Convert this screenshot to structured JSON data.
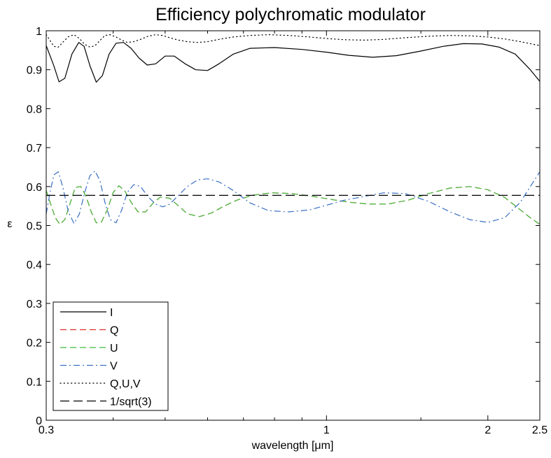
{
  "chart_data": {
    "type": "line",
    "title": "Efficiency polychromatic modulator",
    "xlabel": "wavelength [μm]",
    "ylabel": "ε",
    "xscale": "log",
    "xlim": [
      0.3,
      2.5
    ],
    "ylim": [
      0,
      1
    ],
    "grid": false,
    "legend_position": "bottom-left",
    "x_ticks": [
      {
        "value": 0.3,
        "label": "0.3"
      },
      {
        "value": 1,
        "label": "1"
      },
      {
        "value": 2,
        "label": "2"
      },
      {
        "value": 2.5,
        "label": "2.5"
      }
    ],
    "x_minor_ticks": [
      0.4,
      0.5,
      0.6,
      0.7,
      0.8,
      0.9,
      1.5
    ],
    "y_ticks": [
      {
        "value": 0,
        "label": "0"
      },
      {
        "value": 0.1,
        "label": "0.1"
      },
      {
        "value": 0.2,
        "label": "0.2"
      },
      {
        "value": 0.3,
        "label": "0.3"
      },
      {
        "value": 0.4,
        "label": "0.4"
      },
      {
        "value": 0.5,
        "label": "0.5"
      },
      {
        "value": 0.6,
        "label": "0.6"
      },
      {
        "value": 0.7,
        "label": "0.7"
      },
      {
        "value": 0.8,
        "label": "0.8"
      },
      {
        "value": 0.9,
        "label": "0.9"
      },
      {
        "value": 1,
        "label": "1"
      }
    ],
    "series": [
      {
        "name": "I",
        "color": "#000000",
        "dash": "solid",
        "x": [
          0.3,
          0.31,
          0.317,
          0.325,
          0.335,
          0.345,
          0.353,
          0.362,
          0.372,
          0.382,
          0.393,
          0.405,
          0.418,
          0.432,
          0.447,
          0.463,
          0.48,
          0.5,
          0.52,
          0.545,
          0.57,
          0.6,
          0.63,
          0.67,
          0.72,
          0.8,
          0.9,
          1.0,
          1.1,
          1.22,
          1.35,
          1.5,
          1.65,
          1.8,
          1.95,
          2.1,
          2.25,
          2.4,
          2.5
        ],
        "y": [
          0.962,
          0.91,
          0.869,
          0.878,
          0.94,
          0.97,
          0.96,
          0.91,
          0.868,
          0.885,
          0.94,
          0.968,
          0.97,
          0.955,
          0.93,
          0.912,
          0.915,
          0.935,
          0.935,
          0.915,
          0.9,
          0.898,
          0.915,
          0.94,
          0.955,
          0.957,
          0.952,
          0.945,
          0.937,
          0.932,
          0.936,
          0.948,
          0.96,
          0.967,
          0.966,
          0.958,
          0.94,
          0.9,
          0.87
        ]
      },
      {
        "name": "Q",
        "color": "#e0302a",
        "dash": "dashed",
        "x": [
          0.3,
          0.305,
          0.312,
          0.318,
          0.325,
          0.333,
          0.34,
          0.348,
          0.356,
          0.364,
          0.372,
          0.38,
          0.39,
          0.4,
          0.41,
          0.42,
          0.432,
          0.445,
          0.46,
          0.475,
          0.49,
          0.51,
          0.53,
          0.55,
          0.58,
          0.61,
          0.64,
          0.68,
          0.73,
          0.79,
          0.86,
          0.94,
          1.02,
          1.1,
          1.2,
          1.3,
          1.42,
          1.55,
          1.7,
          1.85,
          2.0,
          2.15,
          2.3,
          2.4,
          2.5
        ],
        "y": [
          0.59,
          0.56,
          0.52,
          0.503,
          0.515,
          0.56,
          0.598,
          0.6,
          0.575,
          0.535,
          0.507,
          0.508,
          0.54,
          0.585,
          0.602,
          0.59,
          0.56,
          0.535,
          0.535,
          0.558,
          0.573,
          0.57,
          0.55,
          0.53,
          0.523,
          0.532,
          0.548,
          0.565,
          0.578,
          0.584,
          0.582,
          0.575,
          0.567,
          0.56,
          0.555,
          0.555,
          0.565,
          0.582,
          0.596,
          0.6,
          0.592,
          0.572,
          0.54,
          0.52,
          0.503
        ]
      },
      {
        "name": "U",
        "color": "#3fbf3f",
        "dash": "dashed",
        "x": [
          0.3,
          0.305,
          0.312,
          0.318,
          0.325,
          0.333,
          0.34,
          0.348,
          0.356,
          0.364,
          0.372,
          0.38,
          0.39,
          0.4,
          0.41,
          0.42,
          0.432,
          0.445,
          0.46,
          0.475,
          0.49,
          0.51,
          0.53,
          0.55,
          0.58,
          0.61,
          0.64,
          0.68,
          0.73,
          0.79,
          0.86,
          0.94,
          1.02,
          1.1,
          1.2,
          1.3,
          1.42,
          1.55,
          1.7,
          1.85,
          2.0,
          2.15,
          2.3,
          2.4,
          2.5
        ],
        "y": [
          0.59,
          0.56,
          0.52,
          0.503,
          0.515,
          0.56,
          0.598,
          0.6,
          0.575,
          0.535,
          0.507,
          0.508,
          0.54,
          0.585,
          0.602,
          0.59,
          0.56,
          0.535,
          0.535,
          0.558,
          0.573,
          0.57,
          0.55,
          0.53,
          0.523,
          0.532,
          0.548,
          0.565,
          0.578,
          0.584,
          0.582,
          0.575,
          0.567,
          0.56,
          0.555,
          0.555,
          0.565,
          0.582,
          0.596,
          0.6,
          0.592,
          0.572,
          0.54,
          0.52,
          0.503
        ]
      },
      {
        "name": "V",
        "color": "#3a6fc4",
        "dash": "dashdot",
        "x": [
          0.3,
          0.305,
          0.31,
          0.316,
          0.322,
          0.33,
          0.338,
          0.346,
          0.354,
          0.362,
          0.37,
          0.378,
          0.386,
          0.395,
          0.405,
          0.415,
          0.425,
          0.437,
          0.45,
          0.465,
          0.48,
          0.495,
          0.51,
          0.53,
          0.55,
          0.575,
          0.6,
          0.63,
          0.67,
          0.72,
          0.78,
          0.85,
          0.93,
          1.0,
          1.08,
          1.18,
          1.28,
          1.4,
          1.55,
          1.7,
          1.85,
          2.0,
          2.15,
          2.3,
          2.5
        ],
        "y": [
          0.53,
          0.585,
          0.63,
          0.638,
          0.6,
          0.535,
          0.505,
          0.53,
          0.585,
          0.628,
          0.64,
          0.615,
          0.56,
          0.515,
          0.507,
          0.54,
          0.585,
          0.605,
          0.6,
          0.573,
          0.555,
          0.548,
          0.555,
          0.578,
          0.6,
          0.617,
          0.62,
          0.612,
          0.59,
          0.558,
          0.538,
          0.535,
          0.54,
          0.552,
          0.565,
          0.575,
          0.584,
          0.582,
          0.562,
          0.535,
          0.515,
          0.508,
          0.52,
          0.56,
          0.638
        ]
      },
      {
        "name": "Q,U,V",
        "color": "#000000",
        "dash": "dotted",
        "x": [
          0.3,
          0.305,
          0.31,
          0.316,
          0.322,
          0.33,
          0.338,
          0.346,
          0.354,
          0.362,
          0.37,
          0.378,
          0.386,
          0.395,
          0.405,
          0.415,
          0.425,
          0.437,
          0.45,
          0.465,
          0.48,
          0.495,
          0.51,
          0.53,
          0.55,
          0.575,
          0.6,
          0.63,
          0.67,
          0.72,
          0.78,
          0.85,
          0.93,
          1.0,
          1.08,
          1.18,
          1.28,
          1.4,
          1.55,
          1.7,
          1.85,
          2.0,
          2.15,
          2.3,
          2.5
        ],
        "y": [
          0.99,
          0.975,
          0.96,
          0.958,
          0.97,
          0.985,
          0.99,
          0.98,
          0.965,
          0.958,
          0.962,
          0.975,
          0.988,
          0.99,
          0.984,
          0.976,
          0.97,
          0.972,
          0.978,
          0.986,
          0.99,
          0.988,
          0.982,
          0.976,
          0.972,
          0.97,
          0.972,
          0.978,
          0.984,
          0.988,
          0.99,
          0.988,
          0.984,
          0.98,
          0.977,
          0.976,
          0.978,
          0.982,
          0.986,
          0.988,
          0.987,
          0.984,
          0.979,
          0.972,
          0.962
        ]
      },
      {
        "name": "1/sqrt(3)",
        "color": "#000000",
        "dash": "longdash",
        "x": [
          0.3,
          2.5
        ],
        "y": [
          0.57735,
          0.57735
        ]
      }
    ]
  }
}
